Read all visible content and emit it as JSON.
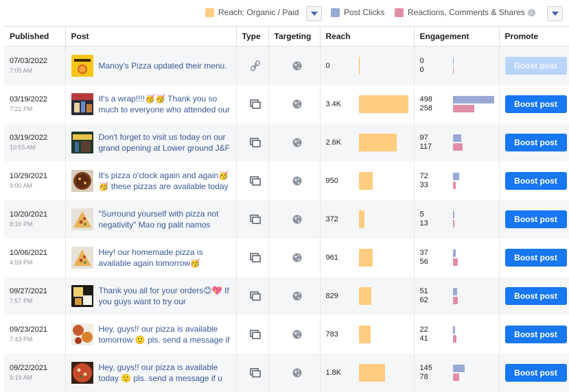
{
  "legend": {
    "reach_label": "Reach: Organic / Paid",
    "clicks_label": "Post Clicks",
    "reactions_label": "Reactions, Comments & Shares",
    "colors": {
      "reach": "#ffcc80",
      "clicks": "#9aa8d4",
      "reactions": "#e18ea6"
    }
  },
  "columns": {
    "published": "Published",
    "post": "Post",
    "type": "Type",
    "targeting": "Targeting",
    "reach": "Reach",
    "engagement": "Engagement",
    "promote": "Promote"
  },
  "boost_label": "Boost post",
  "rows": [
    {
      "date": "07/03/2022",
      "time": "7:05 AM",
      "text": "Manoy's Pizza updated their menu.",
      "type_icon": "link-icon",
      "reach": "0",
      "reach_value": 0,
      "clicks": "0",
      "reactions": "0",
      "clicks_value": 0,
      "reactions_value": 0,
      "boost_disabled": true,
      "thumb": "menu"
    },
    {
      "date": "03/19/2022",
      "time": "7:21 PM",
      "text": "It's a wrap!!!!🥳🥳 Thank you so much to everyone who attended our",
      "type_icon": "album-icon",
      "reach": "3.4K",
      "reach_value": 3400,
      "clicks": "498",
      "reactions": "258",
      "clicks_value": 498,
      "reactions_value": 258,
      "boost_disabled": false,
      "thumb": "event"
    },
    {
      "date": "03/19/2022",
      "time": "10:55 AM",
      "text": "Don't forget to visit us today on our grand opening at Lower ground J&F",
      "type_icon": "album-icon",
      "reach": "2.6K",
      "reach_value": 2600,
      "clicks": "97",
      "reactions": "117",
      "clicks_value": 97,
      "reactions_value": 117,
      "boost_disabled": false,
      "thumb": "store"
    },
    {
      "date": "10/29/2021",
      "time": "9:00 AM",
      "text": "It's pizza o'clock again and again🥳🥳 these pizzas are available today",
      "type_icon": "album-icon",
      "reach": "950",
      "reach_value": 950,
      "clicks": "72",
      "reactions": "33",
      "clicks_value": 72,
      "reactions_value": 33,
      "boost_disabled": false,
      "thumb": "pizza"
    },
    {
      "date": "10/20/2021",
      "time": "8:10 PM",
      "text": "\"Surround yourself with pizza not negativity\" Mao ng palit namos",
      "type_icon": "album-icon",
      "reach": "372",
      "reach_value": 372,
      "clicks": "5",
      "reactions": "13",
      "clicks_value": 5,
      "reactions_value": 13,
      "boost_disabled": false,
      "thumb": "pizza2"
    },
    {
      "date": "10/06/2021",
      "time": "4:59 PM",
      "text": "Hey! our homemade pizza is available again tomorrow🥳",
      "type_icon": "album-icon",
      "reach": "961",
      "reach_value": 961,
      "clicks": "37",
      "reactions": "56",
      "clicks_value": 37,
      "reactions_value": 56,
      "boost_disabled": false,
      "thumb": "pizza2"
    },
    {
      "date": "09/27/2021",
      "time": "7:57 PM",
      "text": "Thank you all for your orders😊💖 If you guys want to try our",
      "type_icon": "album-icon",
      "reach": "829",
      "reach_value": 829,
      "clicks": "51",
      "reactions": "62",
      "clicks_value": 51,
      "reactions_value": 62,
      "boost_disabled": false,
      "thumb": "boxes"
    },
    {
      "date": "09/23/2021",
      "time": "7:43 PM",
      "text": "Hey, guys!! our pizza is available tomorrow 🙂 pls. send a message if",
      "type_icon": "album-icon",
      "reach": "783",
      "reach_value": 783,
      "clicks": "22",
      "reactions": "41",
      "clicks_value": 22,
      "reactions_value": 41,
      "boost_disabled": false,
      "thumb": "pizza3"
    },
    {
      "date": "09/22/2021",
      "time": "9:19 AM",
      "text": "Hey, guys!! our pizza is available today 🙂 pls. send a message if u",
      "type_icon": "album-icon",
      "reach": "1.8K",
      "reach_value": 1800,
      "clicks": "145",
      "reactions": "78",
      "clicks_value": 145,
      "reactions_value": 78,
      "boost_disabled": false,
      "thumb": "pizza4"
    }
  ]
}
